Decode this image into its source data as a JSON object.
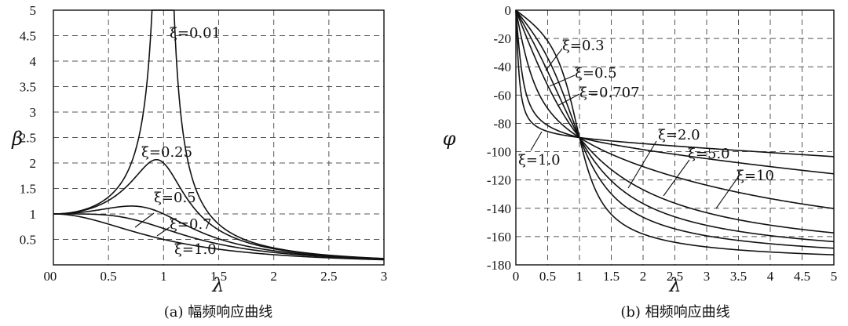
{
  "chart_data": [
    {
      "type": "line",
      "xlabel": "λ",
      "ylabel": "β",
      "xlim": [
        0,
        3
      ],
      "ylim": [
        0,
        5
      ],
      "xticks": [
        "0",
        "0.5",
        "1",
        "1.5",
        "2",
        "2.5",
        "3"
      ],
      "yticks": [
        "0.5",
        "1",
        "1.5",
        "2",
        "2.5",
        "3",
        "3.5",
        "4",
        "4.5",
        "5"
      ],
      "grid": true,
      "caption": "(a) 幅频响应曲线",
      "series": [
        {
          "name": "ξ=0.01",
          "xi": 0.01,
          "x": [
            0,
            0.5,
            0.8,
            0.9,
            0.95,
            1.0,
            1.05,
            1.1,
            1.2,
            1.5,
            2,
            2.5,
            3
          ],
          "y": [
            1.0,
            1.33,
            2.78,
            5.0,
            5.0,
            5.0,
            5.0,
            5.0,
            2.27,
            0.8,
            0.33,
            0.19,
            0.13
          ]
        },
        {
          "name": "ξ=0.25",
          "xi": 0.25,
          "x": [
            0,
            0.5,
            0.8,
            0.9,
            1.0,
            1.1,
            1.2,
            1.5,
            2,
            2.5,
            3
          ],
          "y": [
            1.0,
            1.28,
            2.09,
            2.48,
            2.0,
            1.52,
            1.12,
            0.61,
            0.3,
            0.18,
            0.12
          ]
        },
        {
          "name": "ξ=0.5",
          "xi": 0.5,
          "x": [
            0,
            0.5,
            0.8,
            1.0,
            1.2,
            1.5,
            2,
            2.5,
            3
          ],
          "y": [
            1.0,
            1.12,
            1.22,
            1.0,
            0.78,
            0.5,
            0.28,
            0.17,
            0.12
          ]
        },
        {
          "name": "ξ=0.7",
          "xi": 0.7,
          "x": [
            0,
            0.5,
            0.8,
            1.0,
            1.5,
            2,
            2.5,
            3
          ],
          "y": [
            1.0,
            0.99,
            0.86,
            0.71,
            0.43,
            0.26,
            0.16,
            0.11
          ]
        },
        {
          "name": "ξ=1.0",
          "xi": 1.0,
          "x": [
            0,
            0.5,
            1.0,
            1.5,
            2,
            2.5,
            3
          ],
          "y": [
            1.0,
            0.8,
            0.5,
            0.31,
            0.2,
            0.14,
            0.1
          ]
        }
      ]
    },
    {
      "type": "line",
      "xlabel": "λ",
      "ylabel": "φ",
      "xlim": [
        0,
        5
      ],
      "ylim": [
        -180,
        0
      ],
      "xticks": [
        "0",
        "0.5",
        "1",
        "1.5",
        "2",
        "2.5",
        "3",
        "3.5",
        "4",
        "4.5",
        "5"
      ],
      "yticks": [
        "0",
        "-20",
        "-40",
        "-60",
        "-80",
        "-100",
        "-120",
        "-140",
        "-160",
        "-180"
      ],
      "grid": true,
      "caption": "(b) 相频响应曲线",
      "series": [
        {
          "name": "ξ=0.3",
          "xi": 0.3,
          "x": [
            0,
            0.5,
            1,
            1.5,
            2,
            3,
            5
          ],
          "y": [
            0,
            -21.8,
            -90,
            -144.2,
            -158.2,
            -167.2,
            -172.9
          ]
        },
        {
          "name": "ξ=0.5",
          "xi": 0.5,
          "x": [
            0,
            0.5,
            1,
            1.5,
            2,
            3,
            5
          ],
          "y": [
            0,
            -33.7,
            -90,
            -129.8,
            -146.3,
            -159.4,
            -168.1
          ]
        },
        {
          "name": "ξ=0.707",
          "xi": 0.707,
          "x": [
            0,
            0.5,
            1,
            1.5,
            2,
            3,
            5
          ],
          "y": [
            0,
            -43.3,
            -90,
            -116.4,
            -133.3,
            -152.1,
            -163.2
          ]
        },
        {
          "name": "ξ=1.0",
          "xi": 1.0,
          "x": [
            0,
            0.5,
            1,
            1.5,
            2,
            3,
            5
          ],
          "y": [
            0,
            -53.1,
            -90,
            -112.6,
            -126.9,
            -143.1,
            -157.4
          ]
        },
        {
          "name": "ξ=2.0",
          "xi": 2.0,
          "x": [
            0,
            0.5,
            1,
            1.5,
            2,
            3,
            5
          ],
          "y": [
            0,
            -69.4,
            -90,
            -112.6,
            -126.9,
            -143.1,
            -157.4
          ]
        },
        {
          "name": "ξ=5.0",
          "xi": 5.0,
          "x": [
            0,
            0.5,
            1,
            1.5,
            2,
            3,
            5
          ],
          "y": [
            0,
            -81.5,
            -90,
            -98.3,
            -104.0,
            -114.2,
            -133.6
          ]
        },
        {
          "name": "ξ=10",
          "xi": 10.0,
          "x": [
            0,
            0.5,
            1,
            1.5,
            2,
            3,
            5
          ],
          "y": [
            0,
            -85.7,
            -90,
            -94.6,
            -97.6,
            -104.0,
            -117.2
          ]
        }
      ]
    }
  ]
}
